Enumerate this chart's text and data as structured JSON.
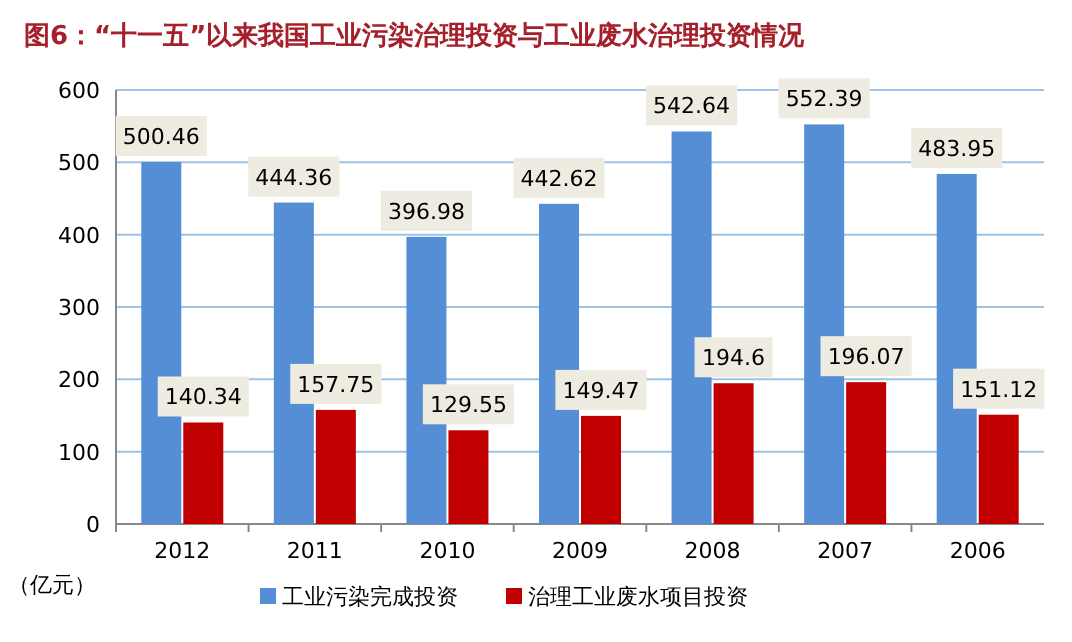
{
  "chart_data": {
    "type": "bar",
    "title": "图6：“十一五”以来我国工业污染治理投资与工业废水治理投资情况",
    "ylabel": "（亿元）",
    "categories": [
      "2012",
      "2011",
      "2010",
      "2009",
      "2008",
      "2007",
      "2006"
    ],
    "series": [
      {
        "name": "工业污染完成投资",
        "color": "#558ed5",
        "values": [
          500.46,
          444.36,
          396.98,
          442.62,
          542.64,
          552.39,
          483.95
        ]
      },
      {
        "name": "治理工业废水项目投资",
        "color": "#c00000",
        "values": [
          140.34,
          157.75,
          129.55,
          149.47,
          194.6,
          196.07,
          151.12
        ]
      }
    ],
    "ylim": [
      0,
      600
    ],
    "yticks": [
      0,
      100,
      200,
      300,
      400,
      500,
      600
    ],
    "grid": "y",
    "legend": "bottom",
    "data_labels": true
  }
}
